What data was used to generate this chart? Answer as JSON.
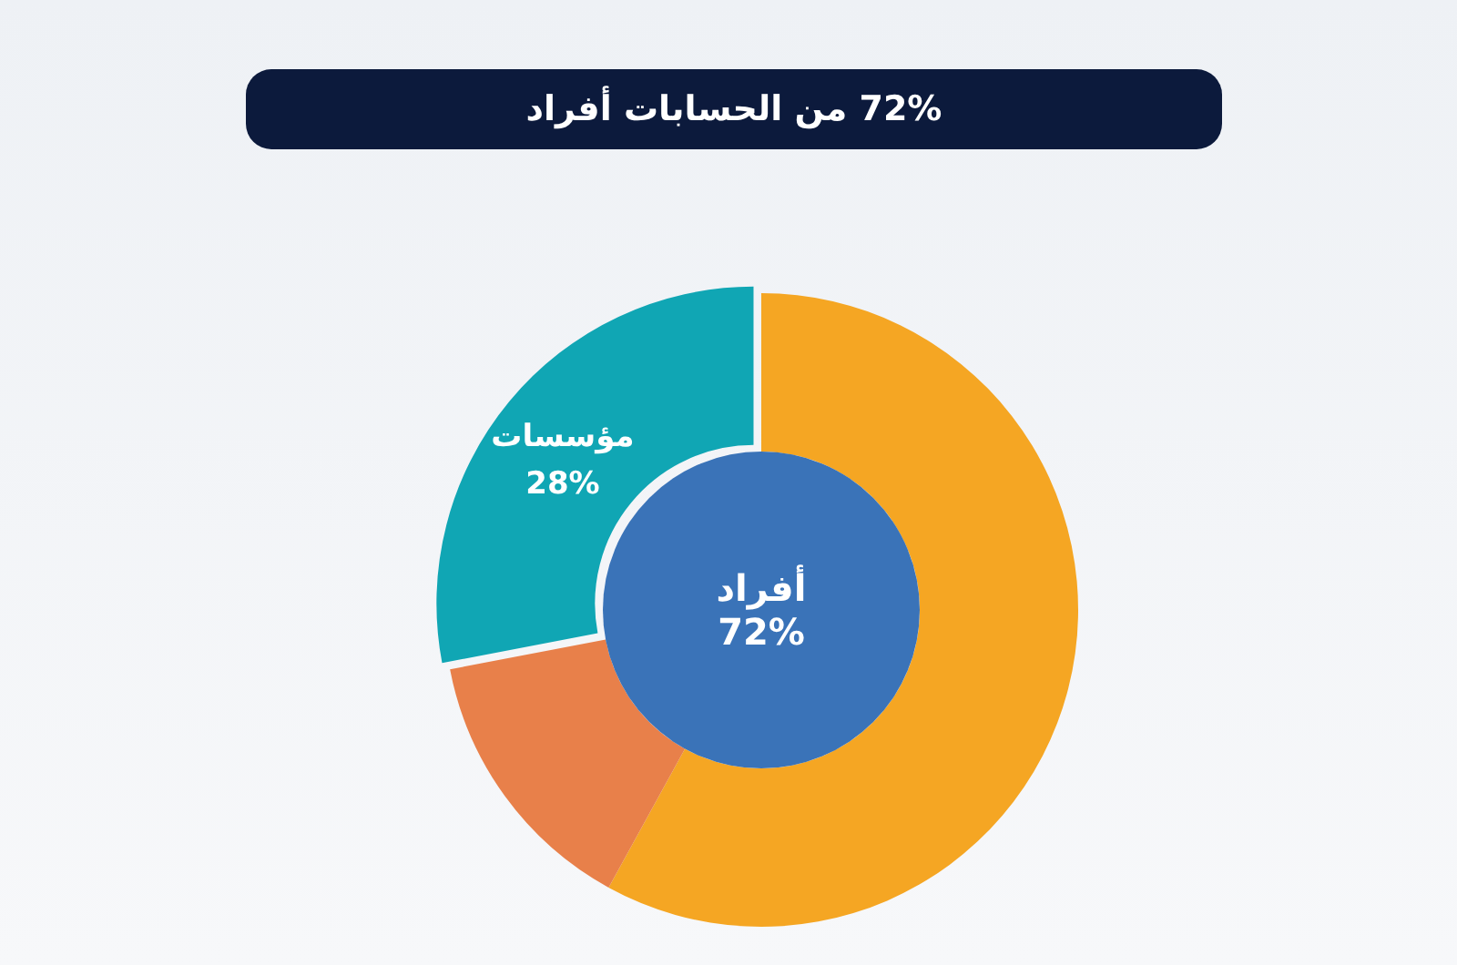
{
  "chart_data": {
    "type": "donut",
    "title": "72% من الحسابات أفراد",
    "categories": [
      "أفراد",
      null,
      "مؤسسات"
    ],
    "values": [
      58,
      14,
      28
    ],
    "colors": [
      "#f5a623",
      "#e8804a",
      "#10a6b4"
    ],
    "value_labels": [
      null,
      null,
      "28%"
    ],
    "annotations": [
      "72%"
    ],
    "legend": false
  }
}
